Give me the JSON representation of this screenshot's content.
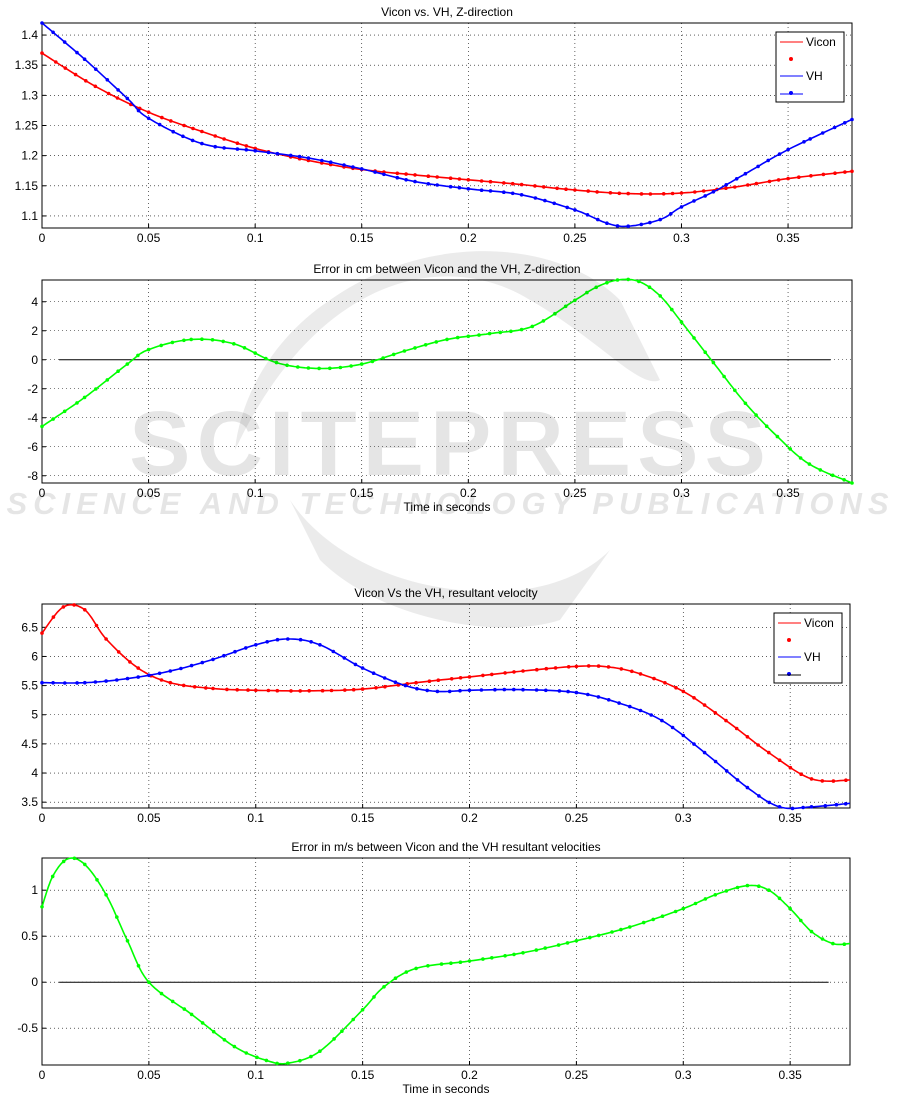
{
  "chart_data": [
    {
      "type": "line",
      "title": "Vicon vs. VH, Z-direction",
      "xlabel": "",
      "ylabel": "",
      "xlim": [
        0,
        0.38
      ],
      "ylim": [
        1.08,
        1.42
      ],
      "xticks": [
        0,
        0.05,
        0.1,
        0.15,
        0.2,
        0.25,
        0.3,
        0.35
      ],
      "xtick_labels": [
        "0",
        "0.05",
        "0.1",
        "0.15",
        "0.2",
        "0.25",
        "0.3",
        "0.35"
      ],
      "yticks": [
        1.1,
        1.15,
        1.2,
        1.25,
        1.3,
        1.35,
        1.4
      ],
      "ytick_labels": [
        "1.1",
        "1.15",
        "1.2",
        "1.25",
        "1.3",
        "1.35",
        "1.4"
      ],
      "grid": true,
      "legend": {
        "position": "top-right",
        "entries": [
          "Vicon",
          "VH"
        ]
      },
      "series": [
        {
          "name": "Vicon",
          "color": "#ff0000",
          "x": [
            0,
            0.025,
            0.05,
            0.075,
            0.1,
            0.125,
            0.15,
            0.175,
            0.2,
            0.225,
            0.25,
            0.275,
            0.3,
            0.325,
            0.35,
            0.38
          ],
          "y": [
            1.37,
            1.315,
            1.272,
            1.24,
            1.212,
            1.192,
            1.177,
            1.168,
            1.16,
            1.152,
            1.143,
            1.137,
            1.138,
            1.148,
            1.162,
            1.174
          ]
        },
        {
          "name": "VH",
          "color": "#0000ff",
          "x": [
            0,
            0.02,
            0.04,
            0.05,
            0.075,
            0.1,
            0.125,
            0.15,
            0.175,
            0.2,
            0.225,
            0.25,
            0.265,
            0.275,
            0.29,
            0.3,
            0.315,
            0.33,
            0.35,
            0.38
          ],
          "y": [
            1.42,
            1.36,
            1.295,
            1.262,
            1.22,
            1.208,
            1.196,
            1.178,
            1.157,
            1.145,
            1.135,
            1.11,
            1.088,
            1.083,
            1.094,
            1.115,
            1.14,
            1.17,
            1.21,
            1.26
          ]
        }
      ]
    },
    {
      "type": "line",
      "title": "Error in cm between Vicon and the VH, Z-direction",
      "xlabel": "Time in seconds",
      "ylabel": "",
      "xlim": [
        0,
        0.38
      ],
      "ylim": [
        -8.5,
        5.5
      ],
      "xticks": [
        0,
        0.05,
        0.1,
        0.15,
        0.2,
        0.25,
        0.3,
        0.35
      ],
      "xtick_labels": [
        "0",
        "0.05",
        "0.1",
        "0.15",
        "0.2",
        "0.25",
        "0.3",
        "0.35"
      ],
      "yticks": [
        -8,
        -6,
        -4,
        -2,
        0,
        2,
        4
      ],
      "ytick_labels": [
        "-8",
        "-6",
        "-4",
        "-2",
        "0",
        "2",
        "4"
      ],
      "grid": true,
      "zero_line": true,
      "series": [
        {
          "color": "#00ff00",
          "x": [
            0,
            0.02,
            0.04,
            0.05,
            0.07,
            0.09,
            0.11,
            0.13,
            0.15,
            0.17,
            0.19,
            0.21,
            0.23,
            0.25,
            0.26,
            0.27,
            0.28,
            0.29,
            0.3,
            0.315,
            0.33,
            0.345,
            0.36,
            0.38
          ],
          "y": [
            -4.6,
            -2.6,
            -0.3,
            0.7,
            1.4,
            1.1,
            -0.2,
            -0.6,
            -0.3,
            0.6,
            1.4,
            1.8,
            2.3,
            4.1,
            5.0,
            5.5,
            5.4,
            4.4,
            2.6,
            -0.2,
            -3.0,
            -5.3,
            -7.2,
            -8.5
          ]
        }
      ]
    },
    {
      "type": "line",
      "title": "Vicon Vs the VH, resultant velocity",
      "xlabel": "",
      "ylabel": "",
      "xlim": [
        0,
        0.378
      ],
      "ylim": [
        3.4,
        6.9
      ],
      "xticks": [
        0,
        0.05,
        0.1,
        0.15,
        0.2,
        0.25,
        0.3,
        0.35
      ],
      "xtick_labels": [
        "0",
        "0.05",
        "0.1",
        "0.15",
        "0.2",
        "0.25",
        "0.3",
        "0.35"
      ],
      "yticks": [
        3.5,
        4,
        4.5,
        5,
        5.5,
        6,
        6.5
      ],
      "ytick_labels": [
        "3.5",
        "4",
        "4.5",
        "5",
        "5.5",
        "6",
        "6.5"
      ],
      "grid": true,
      "legend": {
        "position": "top-right",
        "entries": [
          "Vicon",
          "VH"
        ]
      },
      "series": [
        {
          "name": "Vicon",
          "color": "#ff0000",
          "x": [
            0,
            0.01,
            0.02,
            0.03,
            0.045,
            0.06,
            0.08,
            0.1,
            0.125,
            0.15,
            0.175,
            0.2,
            0.225,
            0.25,
            0.265,
            0.28,
            0.3,
            0.32,
            0.34,
            0.36,
            0.378
          ],
          "y": [
            6.4,
            6.85,
            6.8,
            6.3,
            5.8,
            5.55,
            5.45,
            5.42,
            5.41,
            5.44,
            5.55,
            5.65,
            5.75,
            5.83,
            5.82,
            5.7,
            5.4,
            4.9,
            4.35,
            3.9,
            3.88
          ]
        },
        {
          "name": "VH",
          "color": "#0000ff",
          "x": [
            0,
            0.02,
            0.04,
            0.06,
            0.08,
            0.1,
            0.115,
            0.13,
            0.15,
            0.17,
            0.185,
            0.2,
            0.225,
            0.25,
            0.27,
            0.29,
            0.31,
            0.33,
            0.345,
            0.36,
            0.378
          ],
          "y": [
            5.55,
            5.55,
            5.62,
            5.75,
            5.95,
            6.2,
            6.3,
            6.2,
            5.8,
            5.5,
            5.4,
            5.42,
            5.43,
            5.38,
            5.2,
            4.9,
            4.35,
            3.75,
            3.42,
            3.42,
            3.48
          ]
        }
      ]
    },
    {
      "type": "line",
      "title": "Error in m/s between Vicon and the VH resultant velocities",
      "xlabel": "Time in seconds",
      "ylabel": "",
      "xlim": [
        0,
        0.378
      ],
      "ylim": [
        -0.9,
        1.35
      ],
      "xticks": [
        0,
        0.05,
        0.1,
        0.15,
        0.2,
        0.25,
        0.3,
        0.35
      ],
      "xtick_labels": [
        "0",
        "0.05",
        "0.1",
        "0.15",
        "0.2",
        "0.25",
        "0.3",
        "0.35"
      ],
      "yticks": [
        -0.5,
        0,
        0.5,
        1
      ],
      "ytick_labels": [
        "-0.5",
        "0",
        "0.5",
        "1"
      ],
      "grid": true,
      "zero_line": true,
      "series": [
        {
          "color": "#00ff00",
          "x": [
            0,
            0.005,
            0.012,
            0.02,
            0.03,
            0.04,
            0.05,
            0.07,
            0.09,
            0.105,
            0.115,
            0.13,
            0.15,
            0.16,
            0.175,
            0.2,
            0.225,
            0.25,
            0.275,
            0.3,
            0.315,
            0.33,
            0.34,
            0.35,
            0.36,
            0.37,
            0.378
          ],
          "y": [
            0.82,
            1.15,
            1.34,
            1.28,
            0.95,
            0.45,
            0.0,
            -0.35,
            -0.7,
            -0.85,
            -0.88,
            -0.75,
            -0.3,
            -0.05,
            0.15,
            0.23,
            0.32,
            0.45,
            0.6,
            0.8,
            0.95,
            1.05,
            1.0,
            0.8,
            0.55,
            0.42,
            0.42
          ]
        }
      ]
    }
  ]
}
